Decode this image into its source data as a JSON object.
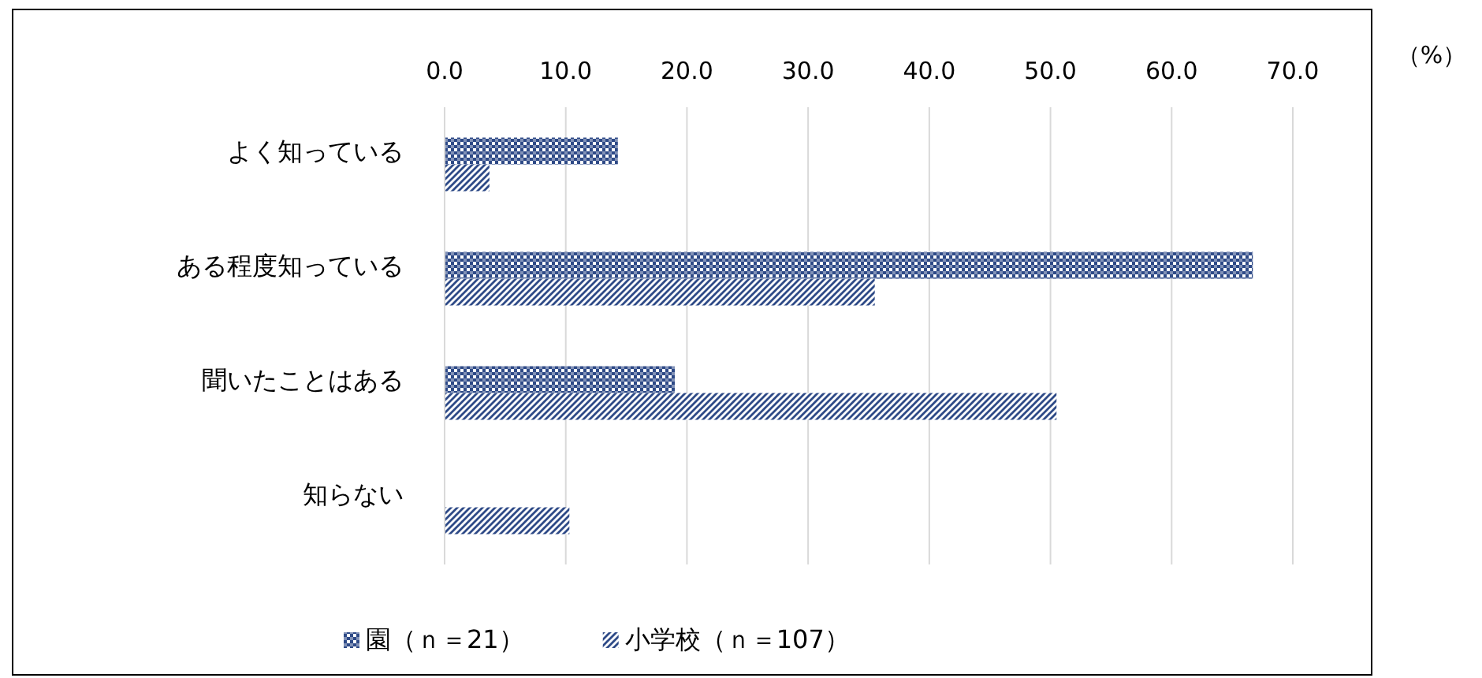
{
  "chart_data": {
    "type": "bar",
    "orientation": "horizontal",
    "xlabel": "（%）",
    "categories": [
      "よく知っている",
      "ある程度知っている",
      "聞いたことはある",
      "知らない"
    ],
    "series": [
      {
        "name": "園（ｎ＝21）",
        "color": "#2e4a87",
        "values": [
          14.3,
          66.7,
          19.0,
          0
        ]
      },
      {
        "name": "小学校（ｎ＝107）",
        "color": "#2e4a87",
        "values": [
          3.7,
          35.5,
          50.5,
          10.3
        ]
      }
    ],
    "xlim": [
      0,
      70
    ],
    "xticks": [
      {
        "value": 0,
        "label": "0.0"
      },
      {
        "value": 10,
        "label": "10.0"
      },
      {
        "value": 20,
        "label": "20.0"
      },
      {
        "value": 30,
        "label": "30.0"
      },
      {
        "value": 40,
        "label": "40.0"
      },
      {
        "value": 50,
        "label": "50.0"
      },
      {
        "value": 60,
        "label": "60.0"
      },
      {
        "value": 70,
        "label": "70.0"
      }
    ],
    "grid": "x",
    "legend": "bottom"
  }
}
